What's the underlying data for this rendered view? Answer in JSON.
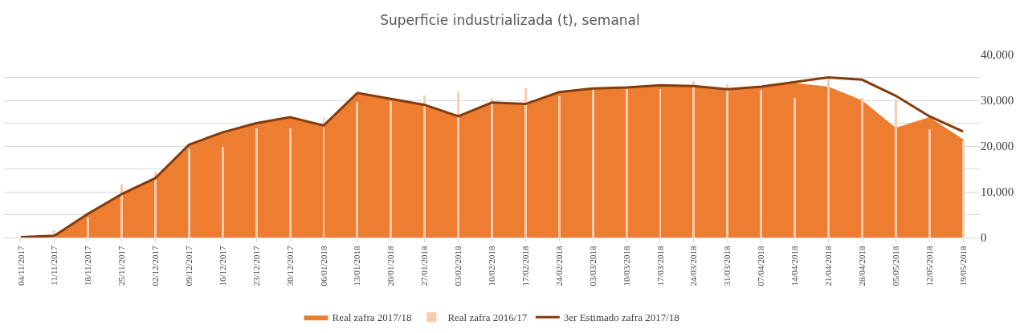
{
  "chart_data": {
    "type": "area",
    "title": "Superficie industrializada (t), semanal",
    "categories": [
      "04/11/2017",
      "11/11/2017",
      "18/11/2017",
      "25/11/2017",
      "02/12/2017",
      "09/12/2017",
      "16/12/2017",
      "23/12/2017",
      "30/12/2017",
      "06/01/2018",
      "13/01/2018",
      "20/01/2018",
      "27/01/2018",
      "03/02/2018",
      "10/02/2018",
      "17/02/2018",
      "24/02/2018",
      "03/03/2018",
      "10/03/2018",
      "17/03/2018",
      "24/03/2018",
      "31/03/2018",
      "07/04/2018",
      "14/04/2018",
      "21/04/2018",
      "28/04/2018",
      "05/05/2018",
      "12/05/2018",
      "19/05/2018"
    ],
    "series": [
      {
        "name": "Real zafra 2017/18",
        "color": "#ed7d31",
        "values": [
          100,
          400,
          5200,
          9500,
          13000,
          20300,
          23000,
          25000,
          26300,
          24500,
          31600,
          30300,
          29000,
          26500,
          29500,
          29200,
          31800,
          32600,
          32800,
          33300,
          33100,
          32400,
          33000,
          33800,
          33000,
          30000,
          24000,
          26300,
          21500
        ]
      },
      {
        "name": "Real zafra 2016/17",
        "type": "bar",
        "color": "#f8cbad",
        "values": [
          0,
          1500,
          4300,
          11600,
          14300,
          19500,
          19900,
          23900,
          23800,
          26400,
          29600,
          29900,
          31100,
          31900,
          30400,
          32700,
          30900,
          32300,
          32500,
          32500,
          34200,
          33500,
          32300,
          30500,
          34600,
          30500,
          30200,
          23600,
          21000
        ]
      },
      {
        "name": "3er Estimado zafra 2017/18",
        "type": "line",
        "color": "#843c0c",
        "values": [
          100,
          400,
          5200,
          9500,
          13000,
          20300,
          23000,
          25000,
          26300,
          24500,
          31600,
          30300,
          29000,
          26500,
          29500,
          29200,
          31800,
          32600,
          32800,
          33300,
          33100,
          32400,
          33000,
          34000,
          35000,
          34500,
          31000,
          26500,
          23200
        ]
      }
    ],
    "ylim": [
      0,
      40000
    ],
    "yticks": [
      {
        "value": 0,
        "label": "0"
      },
      {
        "value": 5000,
        "label": null
      },
      {
        "value": 10000,
        "label": "10,000"
      },
      {
        "value": 15000,
        "label": null
      },
      {
        "value": 20000,
        "label": "20,000"
      },
      {
        "value": 25000,
        "label": null
      },
      {
        "value": 30000,
        "label": "30,000"
      },
      {
        "value": 35000,
        "label": null
      },
      {
        "value": 40000,
        "label": "40,000"
      }
    ],
    "grid": "y",
    "legend": "bottom",
    "line_style": "solid",
    "marker": "none"
  }
}
